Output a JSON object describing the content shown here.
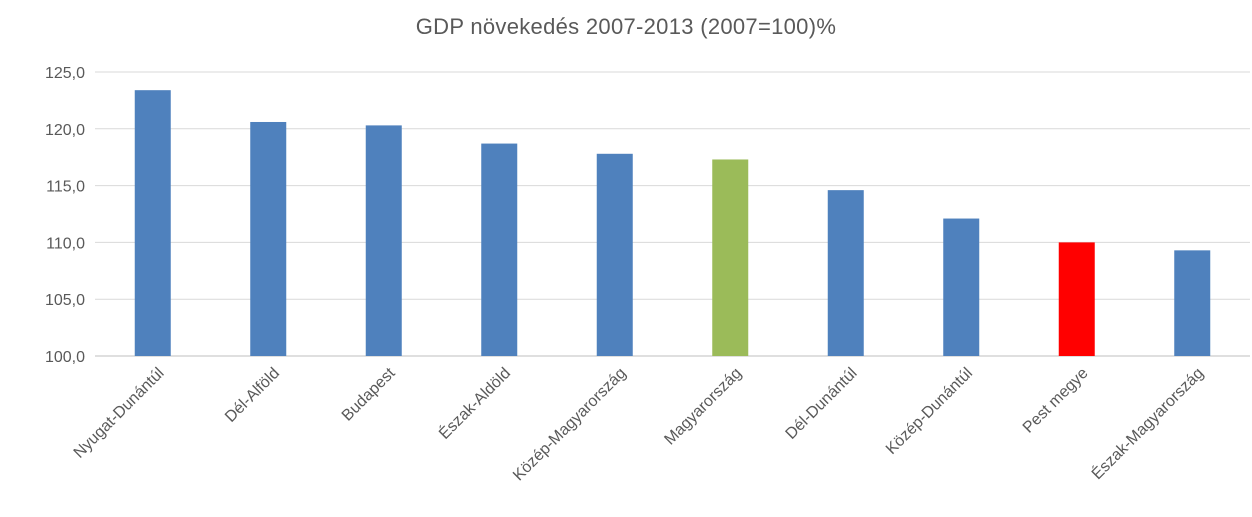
{
  "chart_data": {
    "type": "bar",
    "title": "GDP növekedés 2007-2013 (2007=100)%",
    "xlabel": "",
    "ylabel": "",
    "ylim": [
      100,
      125
    ],
    "yticks": [
      "100,0",
      "105,0",
      "110,0",
      "115,0",
      "120,0",
      "125,0"
    ],
    "grid": true,
    "legend": "none",
    "categories": [
      "Nyugat-Dunántúl",
      "Dél-Alföld",
      "Budapest",
      "Észak-Aldöld",
      "Közép-Magyarország",
      "Magyarország",
      "Dél-Dunántúl",
      "Közép-Dunántúl",
      "Pest megye",
      "Észak-Magyarország"
    ],
    "values": [
      123.4,
      120.6,
      120.3,
      118.7,
      117.8,
      117.3,
      114.6,
      112.1,
      110.0,
      109.3
    ],
    "colors": [
      "#4f81bd",
      "#4f81bd",
      "#4f81bd",
      "#4f81bd",
      "#4f81bd",
      "#9bbb59",
      "#4f81bd",
      "#4f81bd",
      "#ff0000",
      "#4f81bd"
    ]
  }
}
